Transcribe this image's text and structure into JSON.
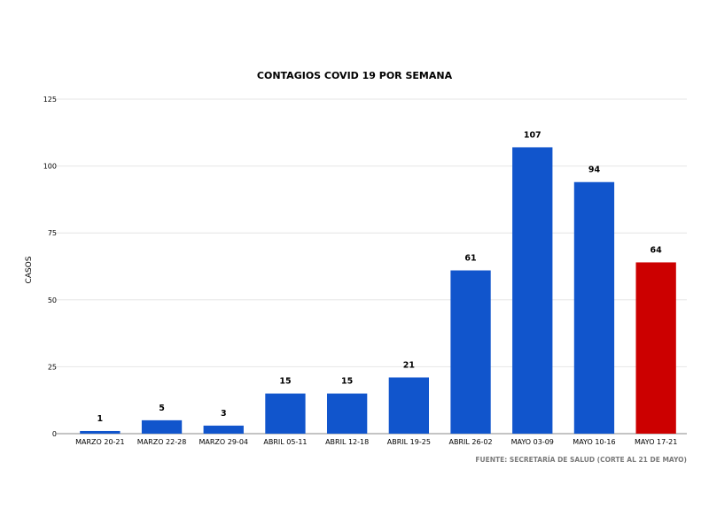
{
  "chart_data": {
    "type": "bar",
    "title": "CONTAGIOS COVID 19 POR SEMANA",
    "ylabel": "CASOS",
    "xlabel": "",
    "source": "FUENTE: SECRETARÍA DE SALUD (CORTE AL 21 DE MAYO)",
    "categories": [
      "MARZO 20-21",
      "MARZO 22-28",
      "MARZO 29-04",
      "ABRIL 05-11",
      "ABRIL 12-18",
      "ABRIL 19-25",
      "ABRIL 26-02",
      "MAYO 03-09",
      "MAYO 10-16",
      "MAYO 17-21"
    ],
    "values": [
      1,
      5,
      3,
      15,
      15,
      21,
      61,
      107,
      94,
      64
    ],
    "ylim": [
      0,
      125
    ],
    "yticks": [
      0,
      25,
      50,
      75,
      100,
      125
    ],
    "grid": true,
    "colors": {
      "bar": "#1155cc",
      "highlight": "#cc0000",
      "highlight_index": 9
    }
  }
}
